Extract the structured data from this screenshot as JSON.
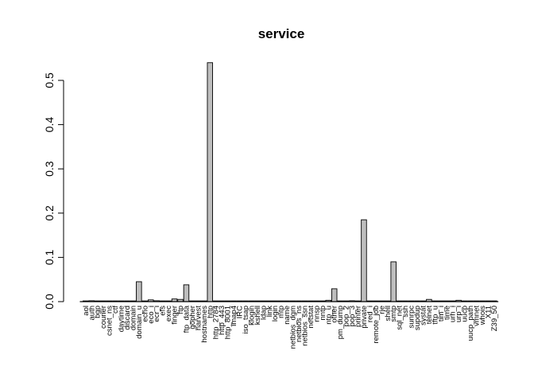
{
  "chart_data": {
    "type": "bar",
    "title": "service",
    "xlabel": "",
    "ylabel": "",
    "ylim": [
      0,
      0.55
    ],
    "yticks": [
      "0.0",
      "0.1",
      "0.2",
      "0.3",
      "0.4",
      "0.5"
    ],
    "bar_color": "#bebebe",
    "categories": [
      "aol",
      "auth",
      "bgp",
      "courier",
      "csnet_ns",
      "ctf",
      "daytime",
      "discard",
      "domain",
      "domain_u",
      "echo",
      "eco_i",
      "ecr_i",
      "efs",
      "exec",
      "finger",
      "ftp",
      "ftp_data",
      "gopher",
      "harvest",
      "hostnames",
      "http",
      "http_2784",
      "http_443",
      "http_8001",
      "imap4",
      "IRC",
      "iso_tsap",
      "klogin",
      "kshell",
      "ldap",
      "link",
      "login",
      "mtp",
      "name",
      "netbios_dgm",
      "netbios_ns",
      "netbios_ssn",
      "netstat",
      "nnsp",
      "nntp",
      "ntp_u",
      "other",
      "pm_dump",
      "pop_2",
      "pop_3",
      "printer",
      "private",
      "red_i",
      "remote_job",
      "rje",
      "shell",
      "smtp",
      "sql_net",
      "ssh",
      "sunrpc",
      "supdup",
      "systat",
      "telnet",
      "tftp_u",
      "tim_i",
      "time",
      "urh_i",
      "urp_i",
      "uucp",
      "uucp_path",
      "vmnet",
      "whois",
      "X11",
      "Z39_50"
    ],
    "values": [
      0.0,
      0.002,
      0.0005,
      0.0005,
      0.0005,
      0.0005,
      0.0005,
      0.0005,
      0.0005,
      0.045,
      0.0015,
      0.004,
      0.002,
      0.0005,
      0.0005,
      0.006,
      0.005,
      0.038,
      0.0005,
      0.0005,
      0.0005,
      0.54,
      0.0002,
      0.0005,
      0.0001,
      0.0005,
      0.0005,
      0.0005,
      0.0005,
      0.0005,
      0.0005,
      0.0005,
      0.0005,
      0.0005,
      0.0005,
      0.0005,
      0.0005,
      0.0005,
      0.0005,
      0.0005,
      0.0005,
      0.003,
      0.029,
      0.0001,
      0.0005,
      0.002,
      0.0005,
      0.185,
      0.0001,
      0.0005,
      0.0005,
      0.0005,
      0.09,
      0.0005,
      0.0005,
      0.0005,
      0.0005,
      0.0005,
      0.005,
      0.0001,
      0.0001,
      0.0005,
      0.0001,
      0.003,
      0.0005,
      0.0005,
      0.0005,
      0.0005,
      0.0001,
      0.0005
    ]
  }
}
